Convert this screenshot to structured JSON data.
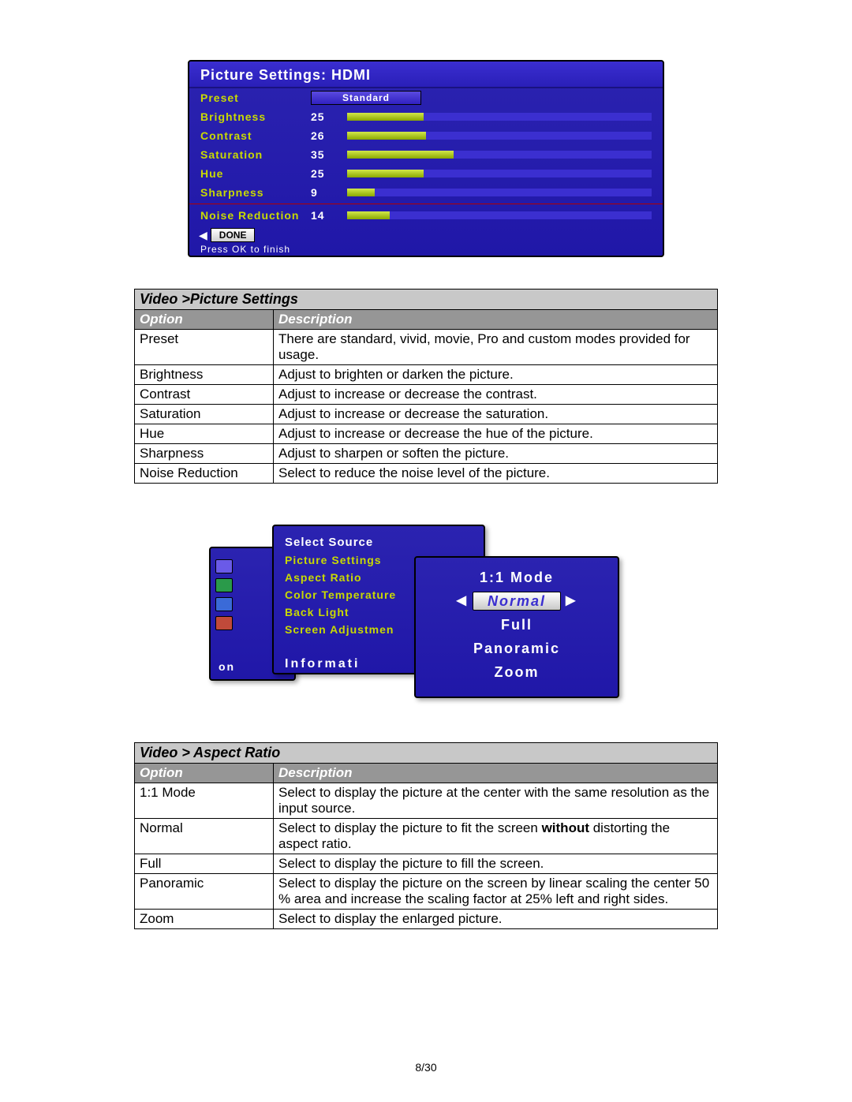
{
  "osd1": {
    "title": "Picture Settings: HDMI",
    "preset_label": "Preset",
    "preset_value": "Standard",
    "rows": [
      {
        "label": "Brightness",
        "val": "25",
        "pct": 25
      },
      {
        "label": "Contrast",
        "val": "26",
        "pct": 26
      },
      {
        "label": "Saturation",
        "val": "35",
        "pct": 35
      },
      {
        "label": "Hue",
        "val": "25",
        "pct": 25
      },
      {
        "label": "Sharpness",
        "val": "9",
        "pct": 9
      }
    ],
    "noise_label": "Noise Reduction",
    "noise_val": "14",
    "noise_pct": 14,
    "done": "DONE",
    "hint": "Press OK to finish"
  },
  "table1": {
    "section": "Video >Picture Settings",
    "col_option": "Option",
    "col_desc": "Description",
    "rows": [
      {
        "opt": "Preset",
        "desc": "There are standard, vivid, movie, Pro and custom modes provided for usage."
      },
      {
        "opt": "Brightness",
        "desc": "Adjust to brighten or darken the picture."
      },
      {
        "opt": "Contrast",
        "desc": "Adjust to increase or decrease the contrast."
      },
      {
        "opt": "Saturation",
        "desc": "Adjust to increase or decrease the saturation."
      },
      {
        "opt": "Hue",
        "desc": "Adjust to increase or decrease the hue of the picture."
      },
      {
        "opt": "Sharpness",
        "desc": "Adjust to sharpen or soften the picture."
      },
      {
        "opt": "Noise Reduction",
        "desc": "Select to reduce the noise level of the picture."
      }
    ]
  },
  "osd2": {
    "menu": {
      "select_source": "Select Source",
      "items": [
        "Picture Settings",
        "Aspect Ratio",
        "Color Temperature",
        "Back Light",
        "Screen Adjustmen"
      ],
      "info": "Informati"
    },
    "popup_title": "1:1 Mode",
    "popup_items": [
      "Normal",
      "Full",
      "Panoramic",
      "Zoom"
    ],
    "side_info": "on"
  },
  "table2": {
    "section": "Video > Aspect Ratio",
    "col_option": "Option",
    "col_desc": "Description",
    "rows": [
      {
        "opt": "1:1 Mode",
        "desc": "Select to display the picture at the center with the same resolution as the input source."
      },
      {
        "opt": "Normal",
        "desc_pre": "Select to display the picture to fit the screen ",
        "desc_bold": "without",
        "desc_post": " distorting the aspect ratio."
      },
      {
        "opt": "Full",
        "desc": "Select to display the picture to fill the screen."
      },
      {
        "opt": "Panoramic",
        "desc": "Select to display the picture on the screen by linear scaling the center 50 % area and increase the scaling factor at 25% left and right sides."
      },
      {
        "opt": "Zoom",
        "desc": "Select to display the enlarged picture."
      }
    ]
  },
  "page_num": "8/30",
  "colors": {
    "osd_bg_top": "#2b23b0",
    "osd_bg_bot": "#2017a8",
    "osd_label": "#c9da00",
    "bar_fill_top": "#d2e84a",
    "bar_fill_bot": "#8aa800",
    "bar_track": "#3b2fd0",
    "th_bg": "#969696",
    "sect_bg": "#c8c8c8"
  }
}
